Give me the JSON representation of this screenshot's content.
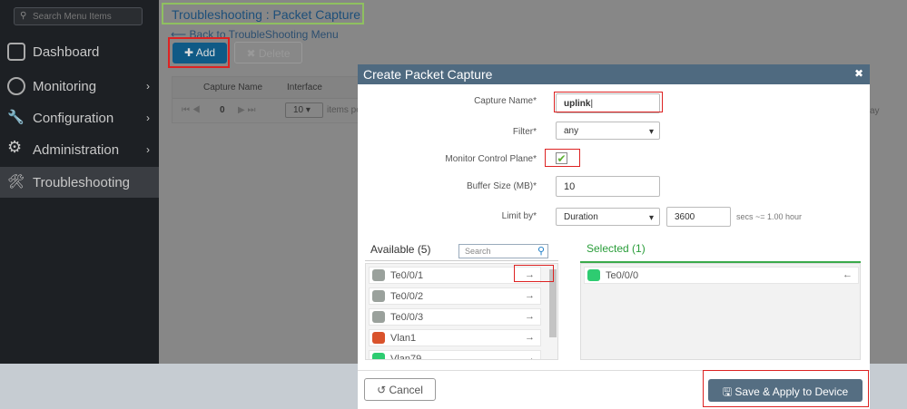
{
  "sidebar": {
    "search_placeholder": "Search Menu Items",
    "items": [
      {
        "label": "Dashboard",
        "icon": "dashboard-icon"
      },
      {
        "label": "Monitoring",
        "icon": "gauge-icon"
      },
      {
        "label": "Configuration",
        "icon": "wrench-icon"
      },
      {
        "label": "Administration",
        "icon": "gear-icon"
      },
      {
        "label": "Troubleshooting",
        "icon": "tools-icon",
        "active": true
      }
    ]
  },
  "page": {
    "title": "Troubleshooting : Packet Capture",
    "back": "Back to TroubleShooting Menu",
    "add": "Add",
    "delete": "Delete",
    "grid": {
      "columns": [
        "Capture Name",
        "Interface"
      ],
      "page": "0",
      "page_size": "10",
      "items_per_page": "items pe",
      "trailing": "ay"
    }
  },
  "modal": {
    "title": "Create Packet Capture",
    "capture_name_label": "Capture Name*",
    "capture_name": "uplink",
    "filter_label": "Filter*",
    "filter": "any",
    "monitor_label": "Monitor Control Plane*",
    "monitor_checked": true,
    "buffer_label": "Buffer Size (MB)*",
    "buffer": "10",
    "limit_label": "Limit by*",
    "limit": "Duration",
    "limit_value": "3600",
    "limit_hint": "secs ~= 1.00 hour",
    "available_title": "Available (5)",
    "search_placeholder": "Search",
    "available": [
      {
        "name": "Te0/0/1",
        "color": "#9aa19c"
      },
      {
        "name": "Te0/0/2",
        "color": "#9aa19c"
      },
      {
        "name": "Te0/0/3",
        "color": "#9aa19c"
      },
      {
        "name": "Vlan1",
        "color": "#d9532c"
      },
      {
        "name": "Vlan79",
        "color": "#2ecc71"
      }
    ],
    "selected_title": "Selected (1)",
    "selected": [
      {
        "name": "Te0/0/0",
        "color": "#2ecc71"
      }
    ],
    "cancel": "Cancel",
    "save": "Save & Apply to Device"
  },
  "colors": {
    "accent": "#0f5a86",
    "modal_header": "#4f6a80",
    "selected_green": "#2a9d3a",
    "highlight": "#dd2222"
  }
}
